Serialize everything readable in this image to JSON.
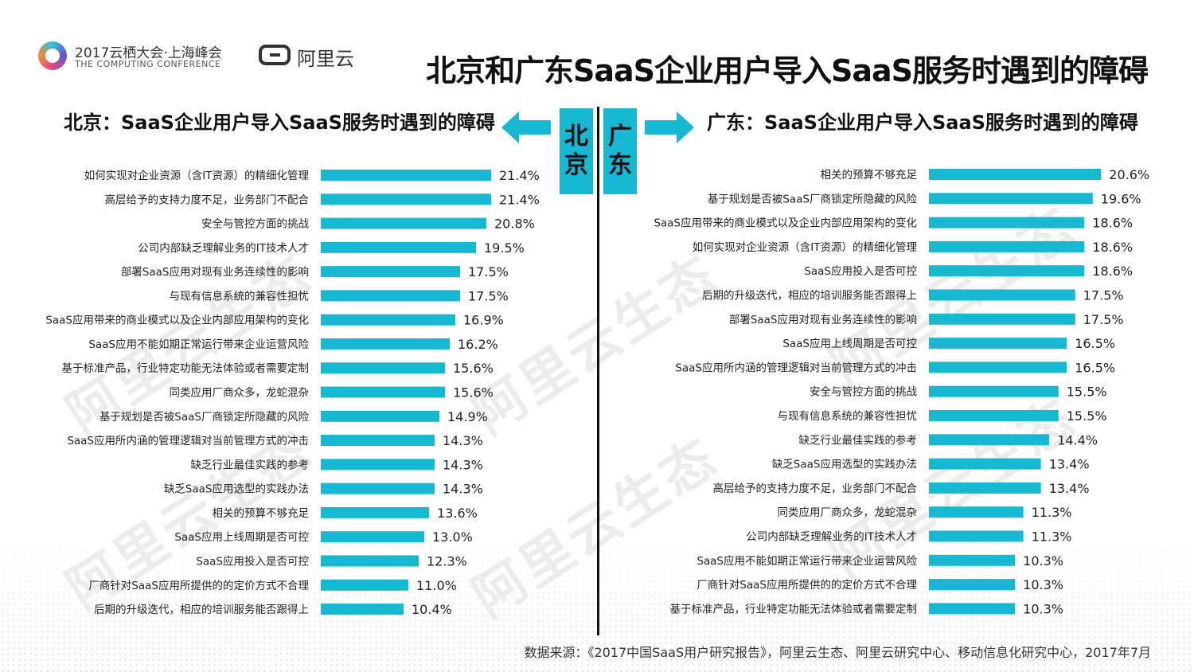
{
  "header": {
    "conference_title": "2017云栖大会·上海峰会",
    "conference_subtitle": "THE COMPUTING CONFERENCE",
    "brand": "阿里云",
    "main_title": "北京和广东SaaS企业用户导入SaaS服务时遇到的障碍"
  },
  "watermark": "阿里云生态",
  "region_boxes": {
    "beijing": "北京",
    "guangdong": "广东"
  },
  "colors": {
    "bar": "#17b8d2",
    "text": "#222222"
  },
  "chart_data": [
    {
      "type": "bar",
      "orientation": "horizontal",
      "title": "北京：SaaS企业用户导入SaaS服务时遇到的障碍",
      "categories": [
        "如何实现对企业资源（含IT资源）的精细化管理",
        "高层给予的支持力度不足，业务部门不配合",
        "安全与管控方面的挑战",
        "公司内部缺乏理解业务的IT技术人才",
        "部署SaaS应用对现有业务连续性的影响",
        "与现有信息系统的兼容性担忧",
        "SaaS应用带来的商业模式以及企业内部应用架构的变化",
        "SaaS应用不能如期正常运行带来企业运营风险",
        "基于标准产品，行业特定功能无法体验或者需要定制",
        "同类应用厂商众多，龙蛇混杂",
        "基于规划是否被SaaS厂商锁定所隐藏的风险",
        "SaaS应用所内涵的管理逻辑对当前管理方式的冲击",
        "缺乏行业最佳实践的参考",
        "缺乏SaaS应用选型的实践办法",
        "相关的预算不够充足",
        "SaaS应用上线周期是否可控",
        "SaaS应用投入是否可控",
        "厂商针对SaaS应用所提供的的定价方式不合理",
        "后期的升级迭代，相应的培训服务能否跟得上"
      ],
      "values": [
        21.4,
        21.4,
        20.8,
        19.5,
        17.5,
        17.5,
        16.9,
        16.2,
        15.6,
        15.6,
        14.9,
        14.3,
        14.3,
        14.3,
        13.6,
        13.0,
        12.3,
        11.0,
        10.4
      ],
      "value_labels": [
        "21.4%",
        "21.4%",
        "20.8%",
        "19.5%",
        "17.5%",
        "17.5%",
        "16.9%",
        "16.2%",
        "15.6%",
        "15.6%",
        "14.9%",
        "14.3%",
        "14.3%",
        "14.3%",
        "13.6%",
        "13.0%",
        "12.3%",
        "11.0%",
        "10.4%"
      ]
    },
    {
      "type": "bar",
      "orientation": "horizontal",
      "title": "广东：SaaS企业用户导入SaaS服务时遇到的障碍",
      "categories": [
        "相关的预算不够充足",
        "基于规划是否被SaaS厂商锁定所隐藏的风险",
        "SaaS应用带来的商业模式以及企业内部应用架构的变化",
        "如何实现对企业资源（含IT资源）的精细化管理",
        "SaaS应用投入是否可控",
        "后期的升级迭代，相应的培训服务能否跟得上",
        "部署SaaS应用对现有业务连续性的影响",
        "SaaS应用上线周期是否可控",
        "SaaS应用所内涵的管理逻辑对当前管理方式的冲击",
        "安全与管控方面的挑战",
        "与现有信息系统的兼容性担忧",
        "缺乏行业最佳实践的参考",
        "缺乏SaaS应用选型的实践办法",
        "高层给予的支持力度不足，业务部门不配合",
        "同类应用厂商众多，龙蛇混杂",
        "公司内部缺乏理解业务的IT技术人才",
        "SaaS应用不能如期正常运行带来企业运营风险",
        "厂商针对SaaS应用所提供的的定价方式不合理",
        "基于标准产品，行业特定功能无法体验或者需要定制"
      ],
      "values": [
        20.6,
        19.6,
        18.6,
        18.6,
        18.6,
        17.5,
        17.5,
        16.5,
        16.5,
        15.5,
        15.5,
        14.4,
        13.4,
        13.4,
        11.3,
        11.3,
        10.3,
        10.3,
        10.3
      ],
      "value_labels": [
        "20.6%",
        "19.6%",
        "18.6%",
        "18.6%",
        "18.6%",
        "17.5%",
        "17.5%",
        "16.5%",
        "16.5%",
        "15.5%",
        "15.5%",
        "14.4%",
        "13.4%",
        "13.4%",
        "11.3%",
        "11.3%",
        "10.3%",
        "10.3%",
        "10.3%"
      ]
    }
  ],
  "footer": {
    "source": "数据来源：《2017中国SaaS用户研究报告》，阿里云生态、阿里云研究中心、移动信息化研究中心，2017年7月"
  }
}
